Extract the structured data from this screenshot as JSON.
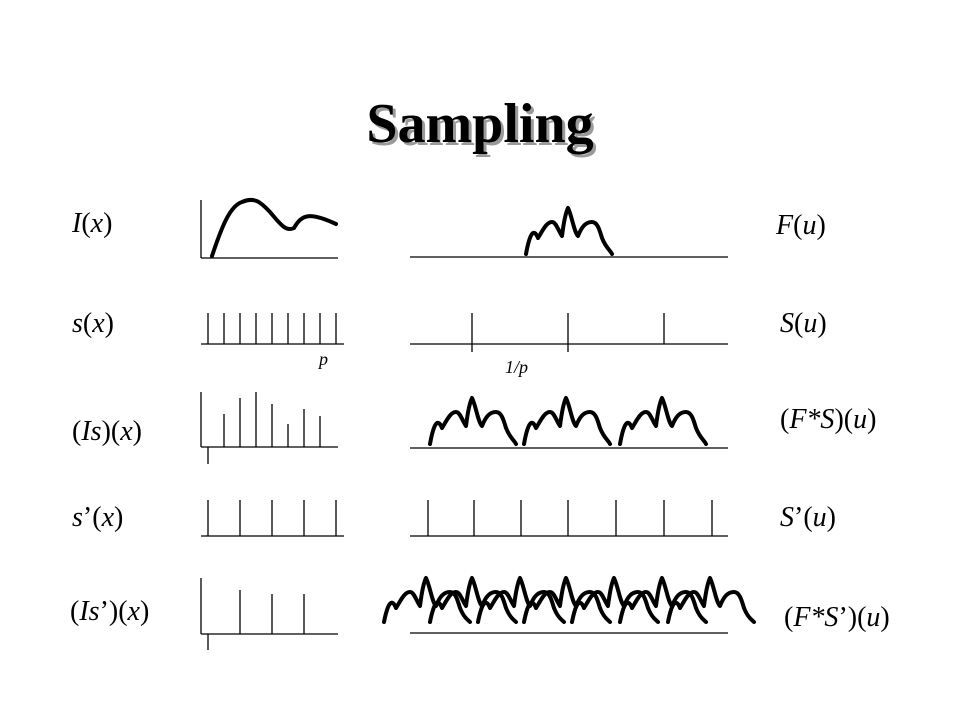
{
  "slide": {
    "title": "Sampling"
  },
  "left_labels": {
    "I": {
      "pre": "",
      "f": "I",
      "mid": "(",
      "v": "x",
      "post": ")"
    },
    "s": {
      "pre": "",
      "f": "s",
      "mid": "(",
      "v": "x",
      "post": ")"
    },
    "Is": {
      "pre": "(",
      "f": "Is",
      "mid": ")(",
      "v": "x",
      "post": ")"
    },
    "sp": {
      "pre": "",
      "f": "s",
      "mid": "’(",
      "v": "x",
      "post": ")"
    },
    "Isp": {
      "pre": "(",
      "f": "Is",
      "mid": "’)(",
      "v": "x",
      "post": ")"
    }
  },
  "right_labels": {
    "F": {
      "pre": "",
      "f": "F",
      "mid": "(",
      "v": "u",
      "post": ")"
    },
    "S": {
      "pre": "",
      "f": "S",
      "mid": "(",
      "v": "u",
      "post": ")"
    },
    "FS": {
      "pre": "(",
      "f": "F*S",
      "mid": ")(",
      "v": "u",
      "post": ")"
    },
    "Sp": {
      "pre": "",
      "f": "S",
      "mid": "’(",
      "v": "u",
      "post": ")"
    },
    "FSp": {
      "pre": "(",
      "f": "F*S",
      "mid": "’)(",
      "v": "u",
      "post": ")"
    }
  },
  "annotations": {
    "period": "p",
    "inverse_period": "1/p"
  }
}
